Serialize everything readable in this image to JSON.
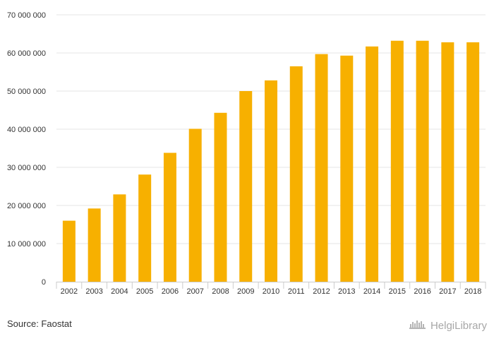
{
  "colors": {
    "bar": "#f7b000",
    "grid": "#e6e6e6",
    "axis": "#cccccc",
    "text": "#333333",
    "brand": "#a7a7a7"
  },
  "chart_data": {
    "type": "bar",
    "categories": [
      "2002",
      "2003",
      "2004",
      "2005",
      "2006",
      "2007",
      "2008",
      "2009",
      "2010",
      "2011",
      "2012",
      "2013",
      "2014",
      "2015",
      "2016",
      "2017",
      "2018"
    ],
    "values": [
      16000000,
      19200000,
      22900000,
      28100000,
      33800000,
      40100000,
      44300000,
      50000000,
      52800000,
      56500000,
      59700000,
      59300000,
      61700000,
      63200000,
      63200000,
      62800000,
      62800000
    ],
    "ylim": [
      0,
      70000000
    ],
    "yticks": [
      "0",
      "10 000 000",
      "20 000 000",
      "30 000 000",
      "40 000 000",
      "50 000 000",
      "60 000 000",
      "70 000 000"
    ],
    "grid": true,
    "legend": "none"
  },
  "footer": {
    "source": "Source: Faostat",
    "brand": "HelgiLibrary",
    "brand_icon": "helgi-library-logo"
  }
}
